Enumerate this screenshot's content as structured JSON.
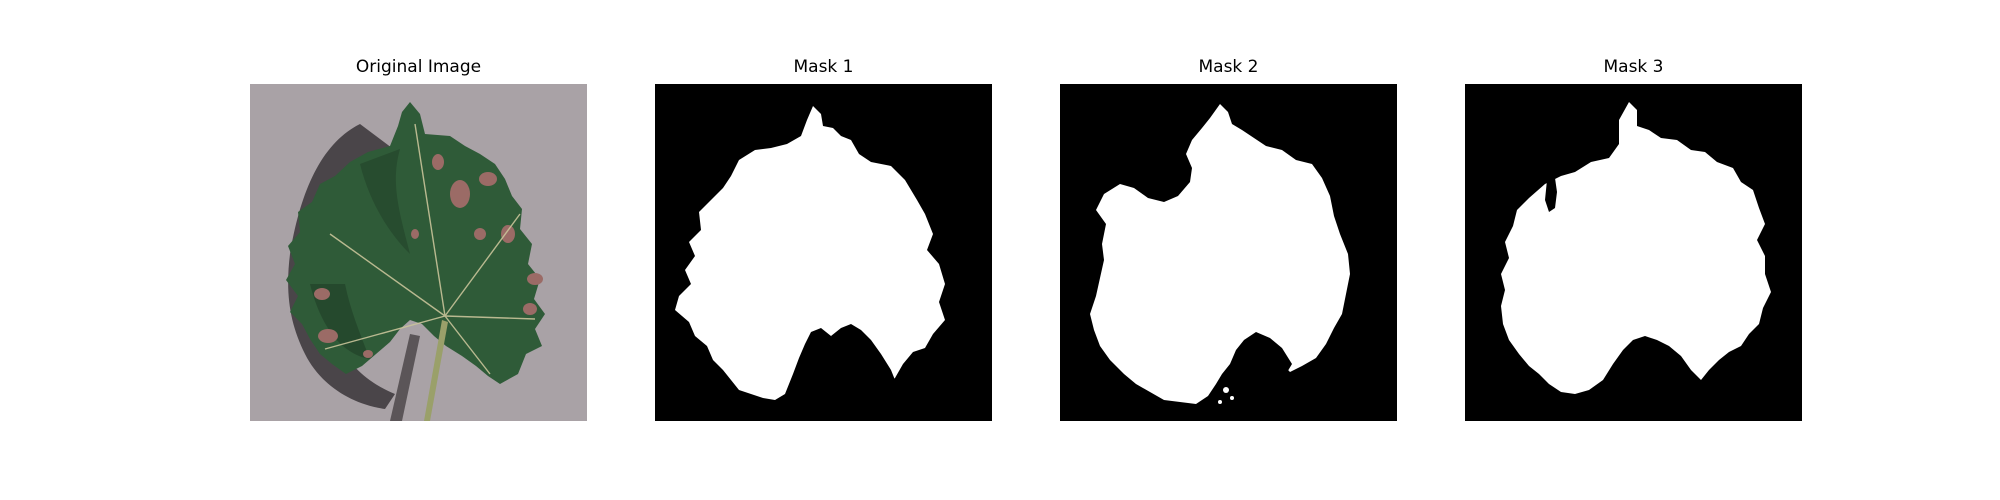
{
  "figure": {
    "background": "#ffffff",
    "panels": [
      {
        "title": "Original Image",
        "kind": "photo-leaf"
      },
      {
        "title": "Mask 1",
        "kind": "binary-mask"
      },
      {
        "title": "Mask 2",
        "kind": "binary-mask"
      },
      {
        "title": "Mask 3",
        "kind": "binary-mask"
      }
    ]
  },
  "colors": {
    "mask_background": "#000000",
    "mask_foreground": "#ffffff",
    "photo_background": "#a9a2a6",
    "leaf_green": "#2f5b38",
    "leaf_dark": "#1f3d26",
    "leaf_vein": "#c9c49a",
    "disease_spot": "#9b6b66",
    "stem": "#9aa06a",
    "shadow": "#3a3538"
  }
}
